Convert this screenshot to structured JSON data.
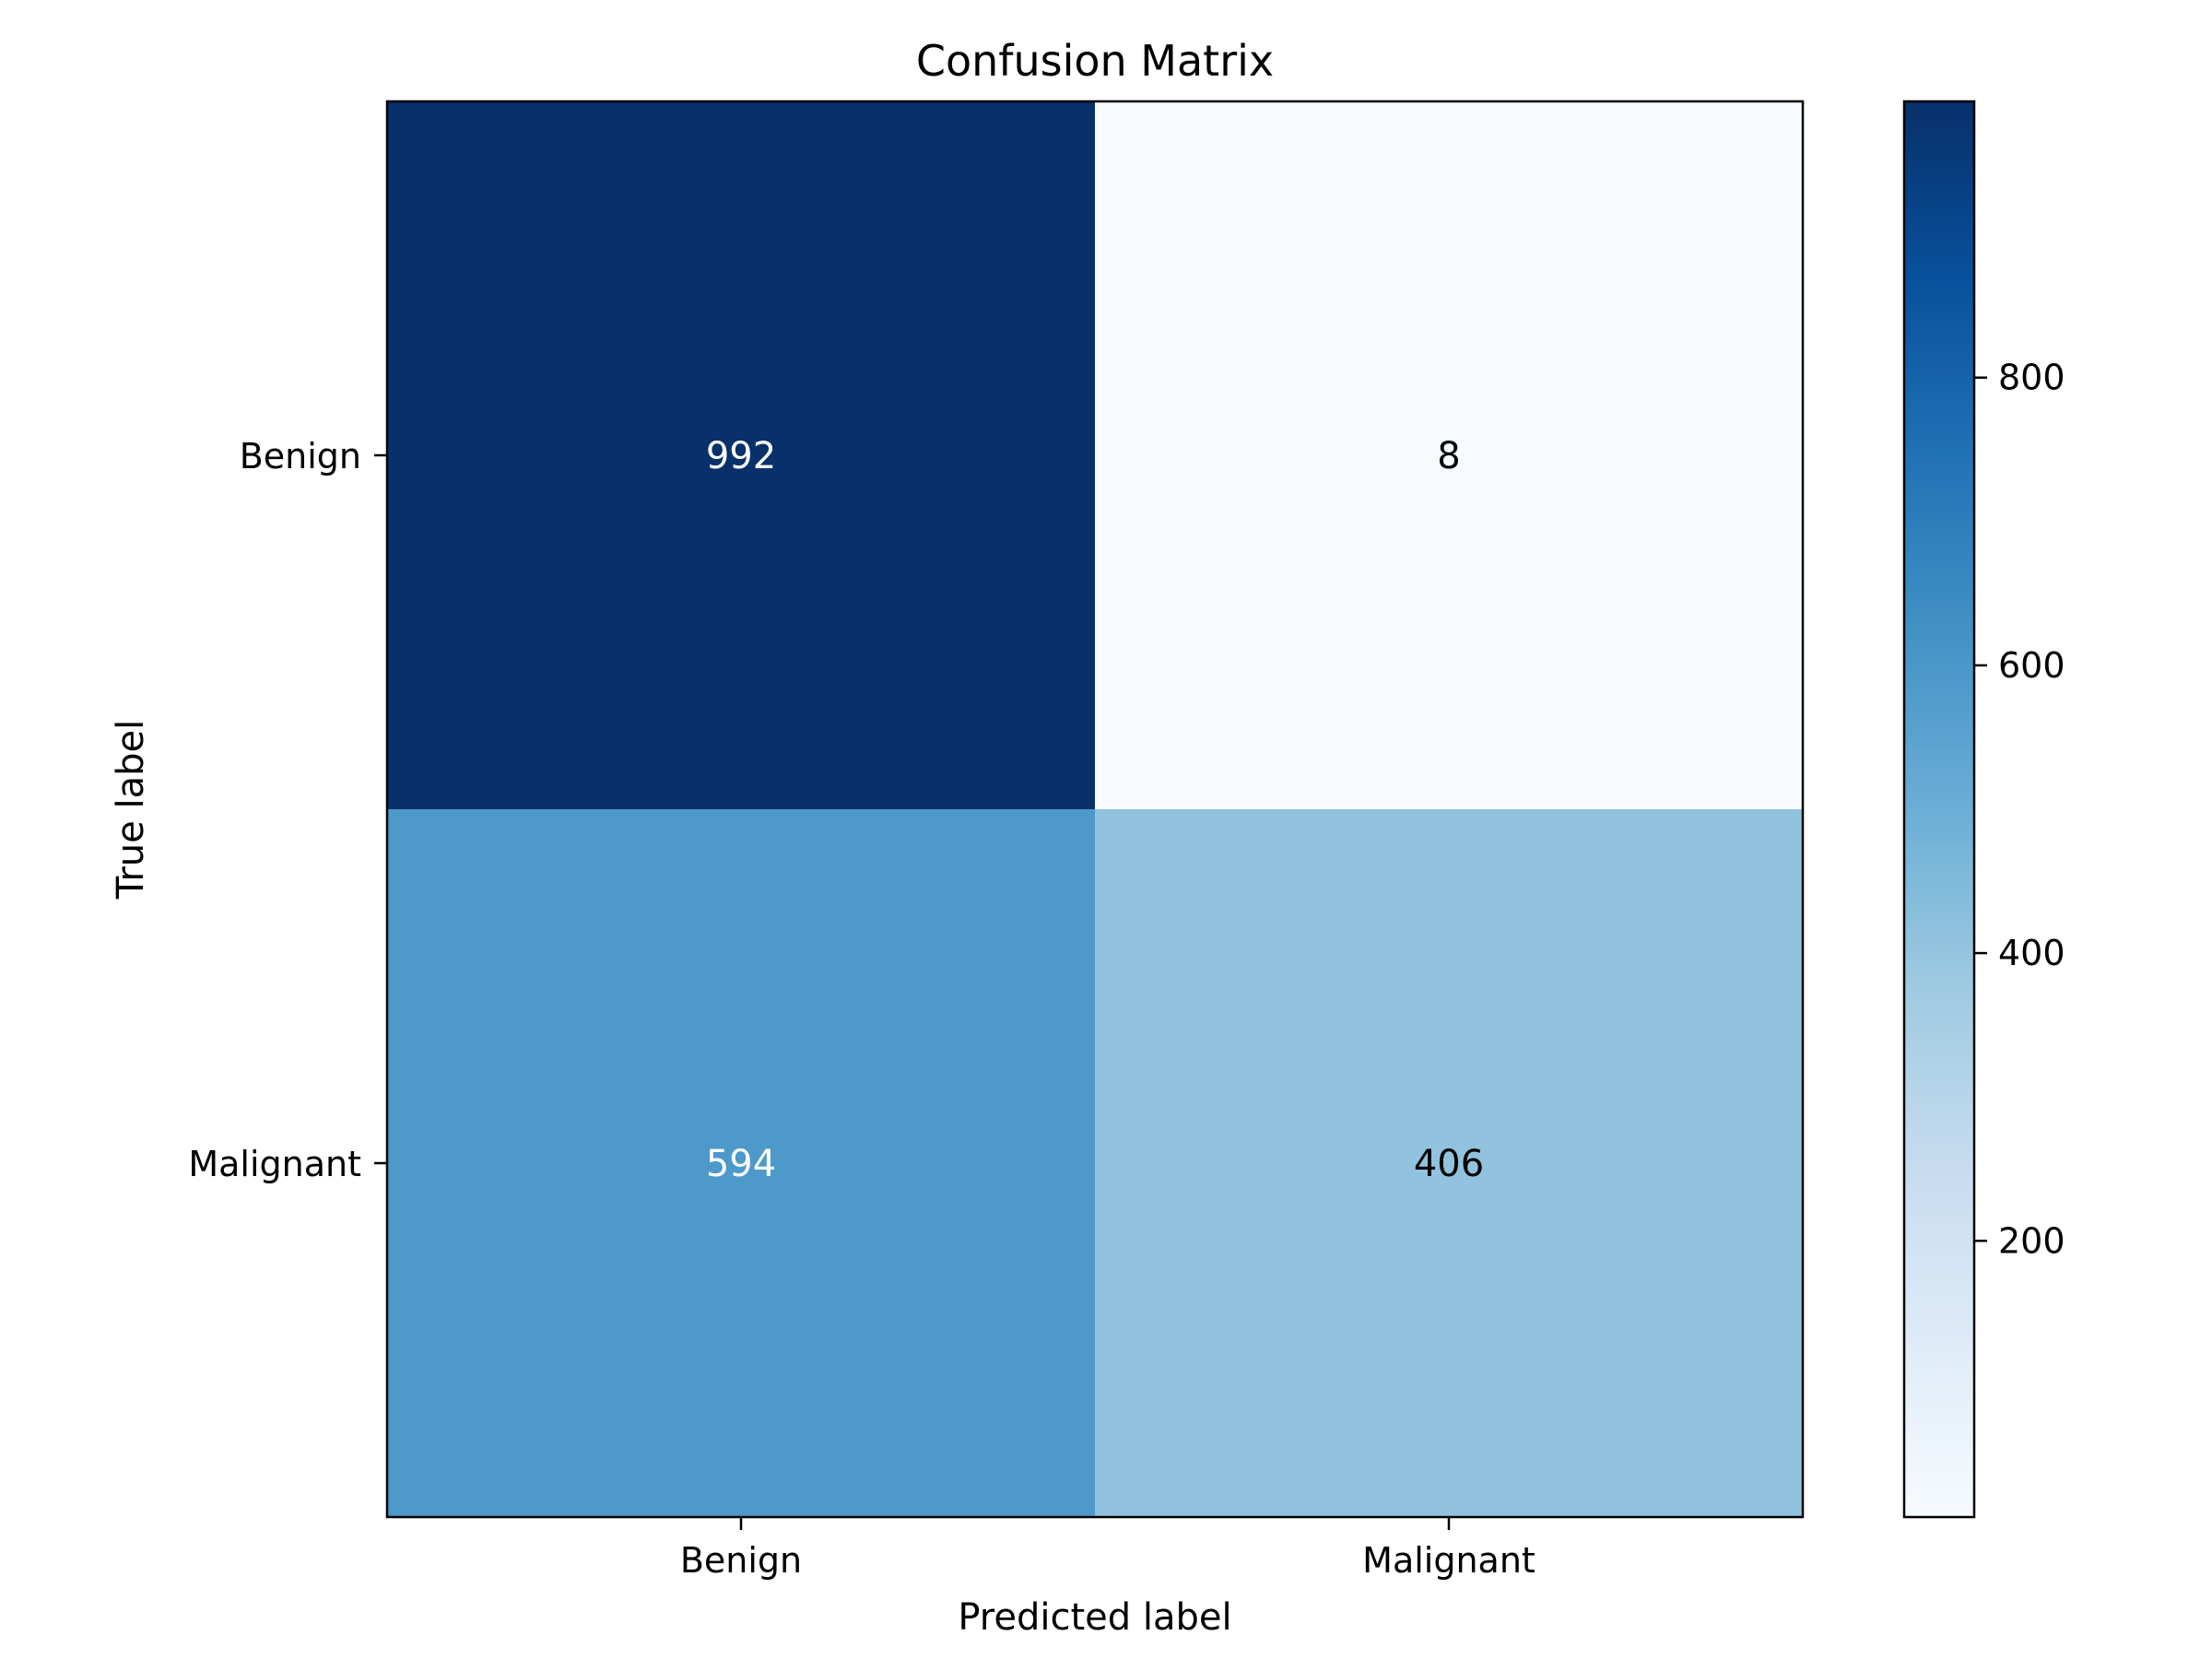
{
  "chart_data": {
    "type": "heatmap",
    "title": "Confusion Matrix",
    "xlabel": "Predicted label",
    "ylabel": "True label",
    "x_categories": [
      "Benign",
      "Malignant"
    ],
    "y_categories": [
      "Benign",
      "Malignant"
    ],
    "values": [
      [
        992,
        8
      ],
      [
        594,
        406
      ]
    ],
    "colormap": "Blues",
    "colorbar": {
      "range": [
        8,
        992
      ],
      "ticks": [
        200,
        400,
        600,
        800
      ],
      "tick_labels": [
        "200",
        "400",
        "600",
        "800"
      ]
    },
    "cell_text_colors": {
      "dark": "#ffffff",
      "light": "#000000"
    },
    "grid": false
  }
}
